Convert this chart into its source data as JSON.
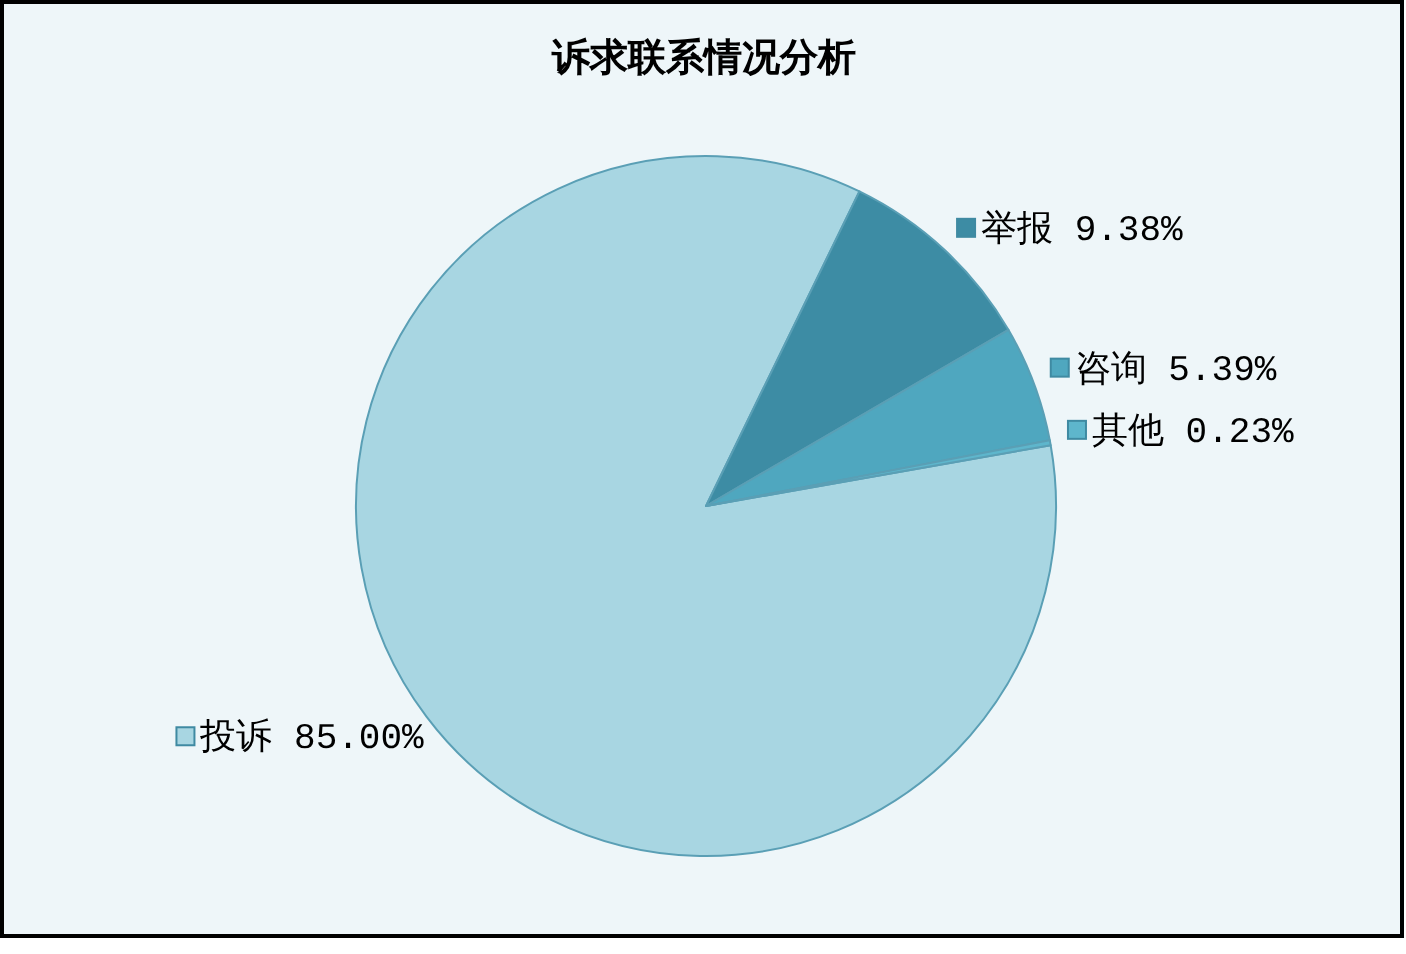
{
  "chart_data": {
    "type": "pie",
    "title": "诉求联系情况分析",
    "categories": [
      "投诉",
      "举报",
      "咨询",
      "其他"
    ],
    "values": [
      85.0,
      9.38,
      5.39,
      0.23
    ],
    "colors": [
      "#a8d6e2",
      "#3d8ca4",
      "#4fa7bf",
      "#5eb6cc"
    ],
    "value_labels": [
      "85.00%",
      "9.38%",
      "5.39%",
      "0.23%"
    ],
    "legend": "right"
  }
}
